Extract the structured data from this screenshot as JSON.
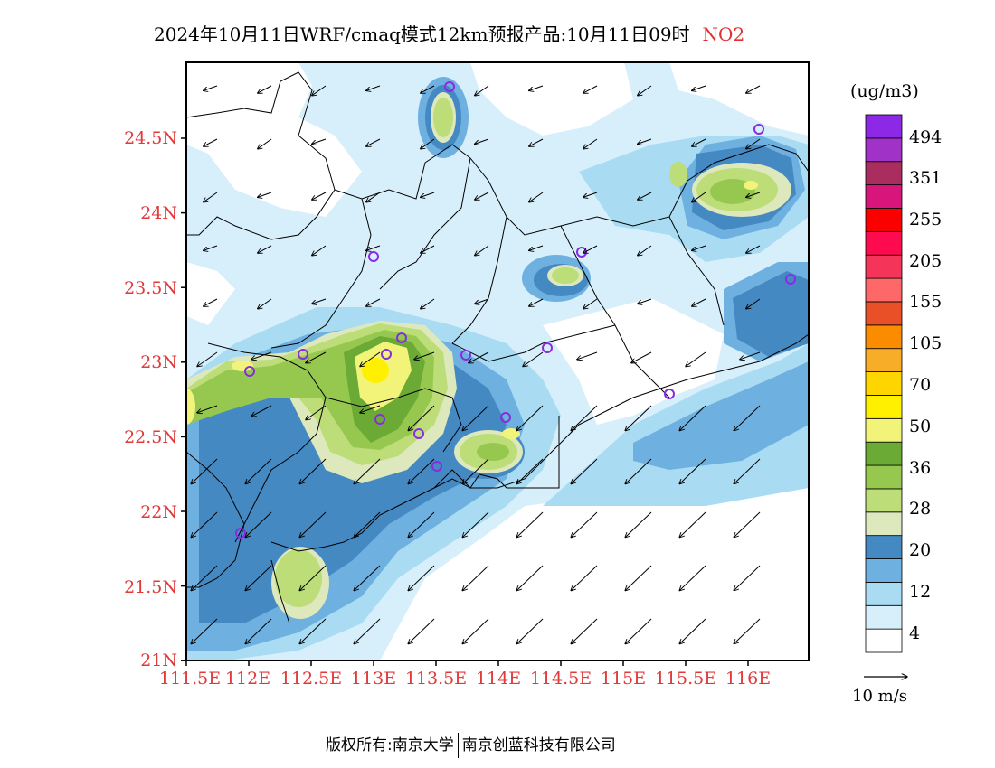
{
  "title": {
    "text": "2024年10月11日WRF/cmaq模式12km预报产品:10月11日09时",
    "pollutant": "NO2"
  },
  "map": {
    "lat_labels": [
      "24.5N",
      "24N",
      "23.5N",
      "23N",
      "22.5N",
      "22N",
      "21.5N",
      "21N"
    ],
    "lon_labels": [
      "111.5E",
      "112E",
      "112.5E",
      "113E",
      "113.5E",
      "114E",
      "114.5E",
      "115E",
      "115.5E",
      "116E"
    ],
    "label_color": "#e03a3a"
  },
  "colorbar": {
    "unit": "(ug/m3)",
    "labels": [
      "494",
      "351",
      "255",
      "205",
      "155",
      "105",
      "70",
      "50",
      "36",
      "28",
      "20",
      "12",
      "4"
    ],
    "colors_bottom_to_top": [
      "#ffffff",
      "#d7effa",
      "#a9dcf3",
      "#6eb0e0",
      "#4589c3",
      "#dde8bc",
      "#bcdd78",
      "#96c850",
      "#6aaa35",
      "#f2f47a",
      "#fff000",
      "#ffd500",
      "#f8ad28",
      "#fb8c00",
      "#ea5028",
      "#fe6868",
      "#f5345a",
      "#fe0a4e",
      "#fc0000",
      "#d7157a",
      "#a92d5f",
      "#a032c8",
      "#8c28e6"
    ]
  },
  "wind_reference": {
    "label": "10 m/s"
  },
  "footer": {
    "left": "版权所有:南京大学",
    "right": "南京创蓝科技有限公司"
  }
}
